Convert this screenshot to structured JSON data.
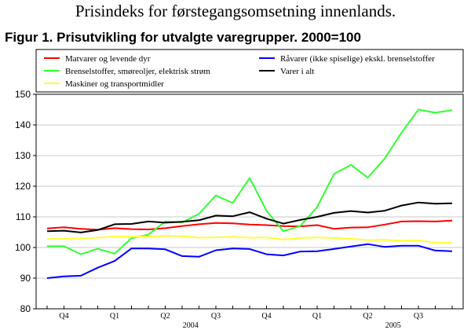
{
  "header": {
    "top_title": "Prisindeks for førstegangsomsetning innenlands.",
    "figure_title": "Figur 1. Prisutvikling for utvalgte varegrupper. 2000=100"
  },
  "chart_data": {
    "type": "line",
    "title": "Figur 1. Prisutvikling for utvalgte varegrupper. 2000=100",
    "xlabel": "",
    "ylabel": "",
    "ylim": [
      80,
      150
    ],
    "yticks": [
      80,
      90,
      100,
      110,
      120,
      130,
      140,
      150
    ],
    "grid": "horizontal",
    "legend_position": "top",
    "quarter_ticks": [
      {
        "label": "Q4",
        "index": 1
      },
      {
        "label": "Q1",
        "index": 4
      },
      {
        "label": "Q2",
        "index": 7
      },
      {
        "label": "Q3",
        "index": 10
      },
      {
        "label": "Q4",
        "index": 13
      },
      {
        "label": "Q1",
        "index": 16
      },
      {
        "label": "Q2",
        "index": 19
      },
      {
        "label": "Q3",
        "index": 22
      }
    ],
    "year_labels": [
      {
        "label": "2004",
        "index": 8.5
      },
      {
        "label": "2005",
        "index": 20.5
      }
    ],
    "x_count": 25,
    "series": [
      {
        "name": "Matvarer og levende dyr",
        "color": "#ff0000",
        "values": [
          106.2,
          106.6,
          106.1,
          105.8,
          106.3,
          106.0,
          105.9,
          106.3,
          107.0,
          107.6,
          108.0,
          107.9,
          107.5,
          107.3,
          107.0,
          106.9,
          107.3,
          106.1,
          106.5,
          106.6,
          107.5,
          108.5,
          108.6,
          108.5,
          108.8
        ]
      },
      {
        "name": "Brenselstoffer, smøreoljer, elektrisk strøm",
        "color": "#33ff33",
        "values": [
          100.4,
          100.4,
          97.8,
          99.6,
          98.0,
          103.0,
          104.2,
          108.5,
          108.2,
          111.0,
          117.0,
          114.5,
          122.7,
          112.0,
          105.3,
          107.0,
          113.2,
          124.0,
          127.0,
          122.8,
          129.0,
          137.5,
          145.0,
          144.0,
          144.8
        ]
      },
      {
        "name": "Maskiner og transportmidler",
        "color": "#ffff33",
        "values": [
          102.8,
          102.8,
          103.0,
          103.2,
          103.6,
          103.5,
          103.6,
          103.8,
          103.7,
          103.2,
          103.3,
          103.5,
          103.2,
          103.3,
          102.6,
          103.1,
          103.3,
          103.1,
          102.9,
          102.4,
          102.5,
          102.2,
          102.3,
          101.6,
          101.6
        ]
      },
      {
        "name": "Råvarer (ikke spiselige) ekskl. brenselstoffer",
        "color": "#0000ff",
        "values": [
          90.0,
          90.6,
          90.8,
          93.4,
          95.6,
          99.7,
          99.7,
          99.4,
          97.2,
          97.0,
          99.1,
          99.7,
          99.5,
          97.8,
          97.4,
          98.7,
          98.8,
          99.5,
          100.3,
          101.1,
          100.2,
          100.6,
          100.6,
          99.0,
          98.8
        ]
      },
      {
        "name": "Varer i alt",
        "color": "#000000",
        "values": [
          105.3,
          105.5,
          104.9,
          105.7,
          107.6,
          107.7,
          108.5,
          108.1,
          108.4,
          108.9,
          110.4,
          110.2,
          111.5,
          109.4,
          107.8,
          109.0,
          110.0,
          111.3,
          111.9,
          111.4,
          112.0,
          113.7,
          114.7,
          114.3,
          114.4
        ]
      }
    ]
  }
}
